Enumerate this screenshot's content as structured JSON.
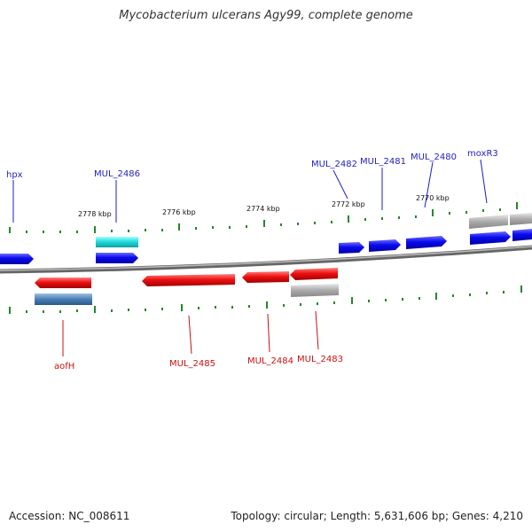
{
  "title": "Mycobacterium ulcerans Agy99, complete genome",
  "footer": {
    "accession": "Accession: NC_008611",
    "summary": "Topology: circular; Length: 5,631,606 bp; Genes: 4,210"
  },
  "scale_labels": [
    "2778 kbp",
    "2776 kbp",
    "2774 kbp",
    "2772 kbp",
    "2770 kbp"
  ],
  "forward_labels": [
    "hpx",
    "MUL_2486",
    "MUL_2482",
    "MUL_2481",
    "MUL_2480",
    "moxR3"
  ],
  "reverse_labels": [
    "aofH",
    "MUL_2485",
    "MUL_2484",
    "MUL_2483"
  ],
  "colors": {
    "forward_cds": "#0a0aee",
    "reverse_cds": "#ee1111",
    "rna": "#22dddd",
    "pseudo": "#aaaaaa",
    "reverse_other": "#4a7fb5",
    "tick": "#22882a",
    "backbone": "#888888"
  }
}
